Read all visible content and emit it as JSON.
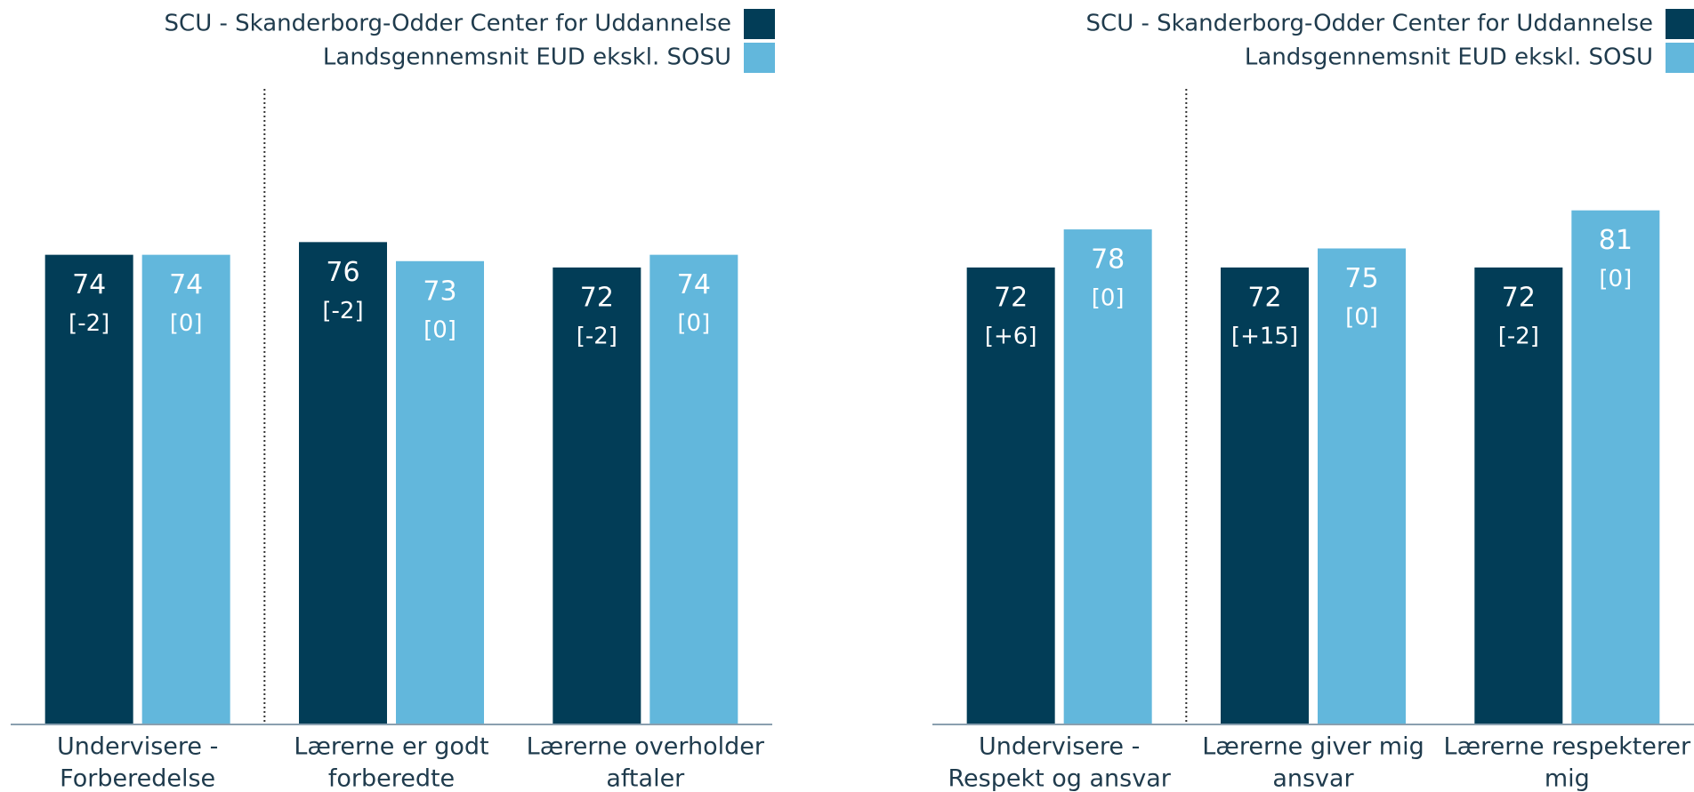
{
  "chart_data": [
    {
      "type": "bar",
      "categories": [
        [
          "Undervisere -",
          "Forberedelse"
        ],
        [
          "Lærerne er godt",
          "forberedte"
        ],
        [
          "Lærerne overholder",
          "aftaler"
        ]
      ],
      "series": [
        {
          "name": "SCU - Skanderborg-Odder Center for Uddannelse",
          "color": "#023d57",
          "values": [
            74,
            76,
            72
          ],
          "diff_labels": [
            "[-2]",
            "[-2]",
            "[-2]"
          ]
        },
        {
          "name": "Landsgennemsnit EUD ekskl. SOSU",
          "color": "#62b7dc",
          "values": [
            74,
            73,
            74
          ],
          "diff_labels": [
            "[0]",
            "[0]",
            "[0]"
          ]
        }
      ],
      "ylim": [
        0,
        100
      ]
    },
    {
      "type": "bar",
      "categories": [
        [
          "Undervisere -",
          "Respekt og ansvar"
        ],
        [
          "Lærerne giver mig",
          "ansvar"
        ],
        [
          "Lærerne respekterer",
          "mig"
        ]
      ],
      "series": [
        {
          "name": "SCU - Skanderborg-Odder Center for Uddannelse",
          "color": "#023d57",
          "values": [
            72,
            72,
            72
          ],
          "diff_labels": [
            "[+6]",
            "[+15]",
            "[-2]"
          ]
        },
        {
          "name": "Landsgennemsnit EUD ekskl. SOSU",
          "color": "#62b7dc",
          "values": [
            78,
            75,
            81
          ],
          "diff_labels": [
            "[0]",
            "[0]",
            "[0]"
          ]
        }
      ],
      "ylim": [
        0,
        100
      ]
    }
  ]
}
